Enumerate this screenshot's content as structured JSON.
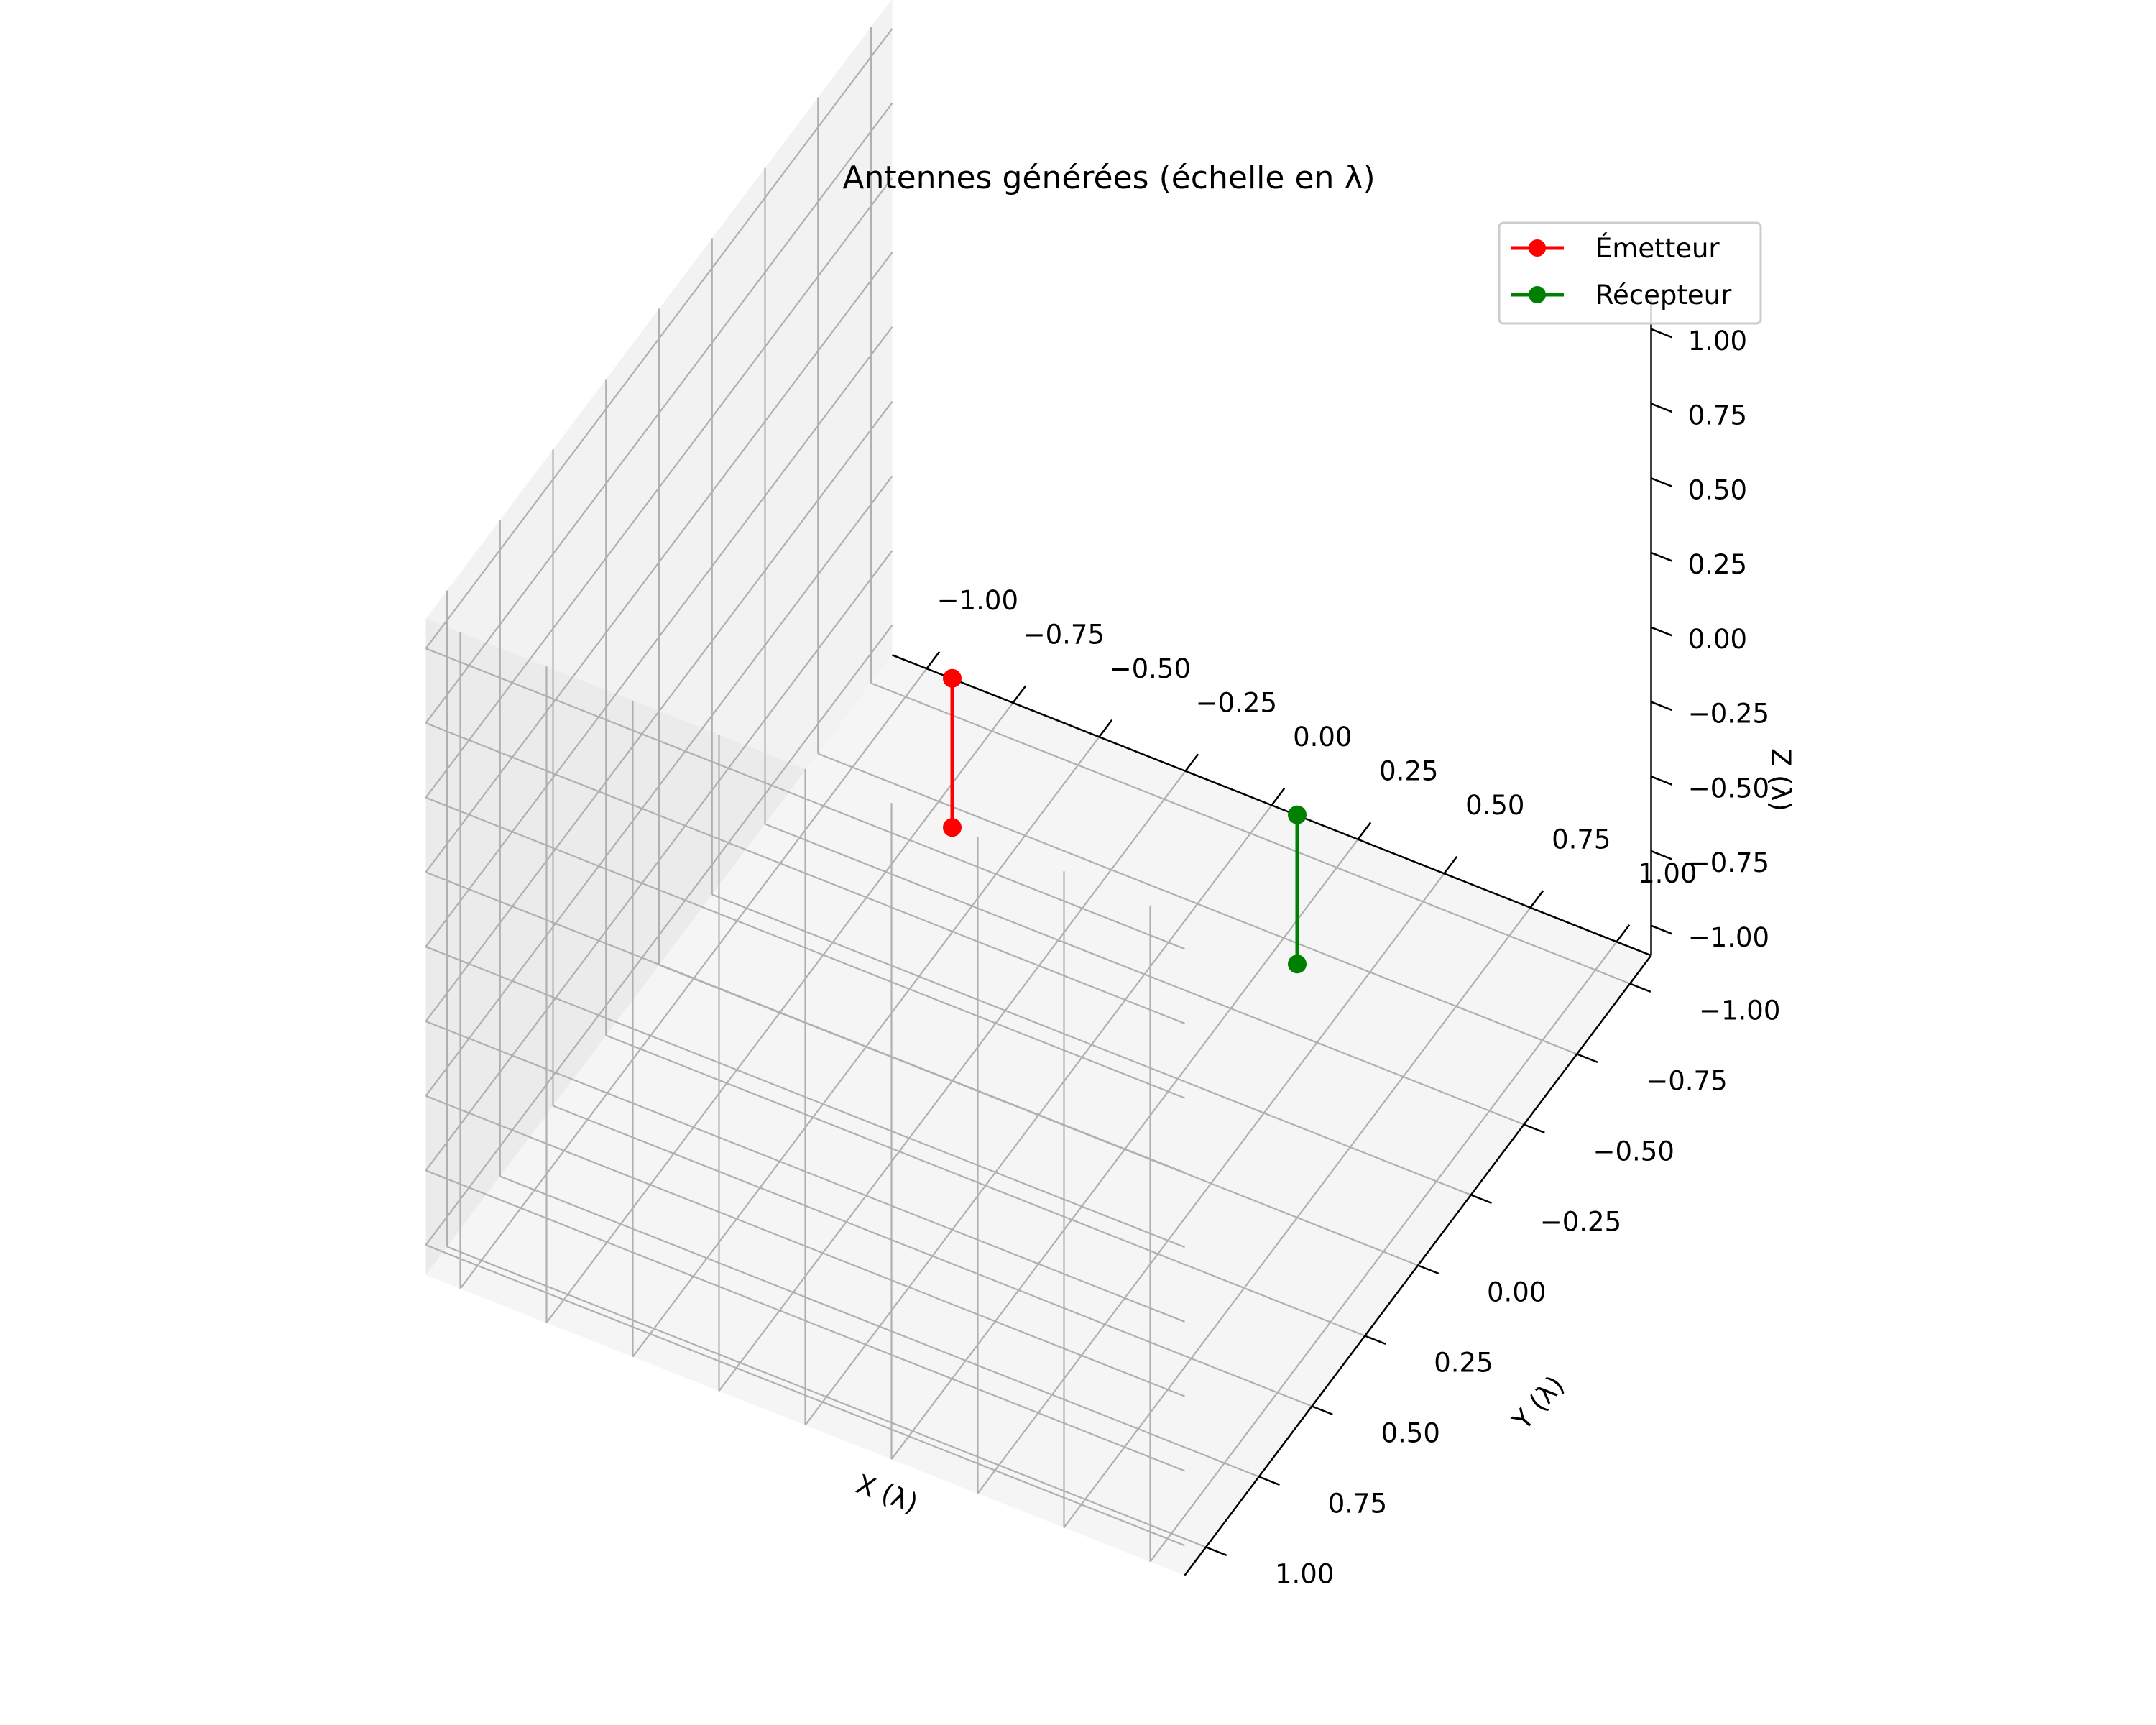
{
  "chart_data": {
    "type": "line",
    "projection": "3d",
    "title": "Antennes générées (échelle en λ)",
    "xlabel": "X (λ)",
    "ylabel": "Y (λ)",
    "zlabel": "Z (λ)",
    "xlim": [
      -1.0,
      1.0
    ],
    "ylim": [
      -1.0,
      1.0
    ],
    "zlim": [
      -1.0,
      1.0
    ],
    "ticks": [
      "−1.00",
      "−0.75",
      "−0.50",
      "−0.25",
      "0.00",
      "0.25",
      "0.50",
      "0.75",
      "1.00"
    ],
    "grid": true,
    "legend_position": "top-right",
    "series": [
      {
        "name": "Émetteur",
        "color": "#ff0000",
        "marker": "circle",
        "points": [
          {
            "x": -0.25,
            "y": 0.0,
            "z": -0.25
          },
          {
            "x": -0.25,
            "y": 0.0,
            "z": 0.25
          }
        ]
      },
      {
        "name": "Récepteur",
        "color": "#008000",
        "marker": "circle",
        "points": [
          {
            "x": 0.75,
            "y": 0.0,
            "z": -0.25
          },
          {
            "x": 0.75,
            "y": 0.0,
            "z": 0.25
          }
        ]
      }
    ]
  }
}
